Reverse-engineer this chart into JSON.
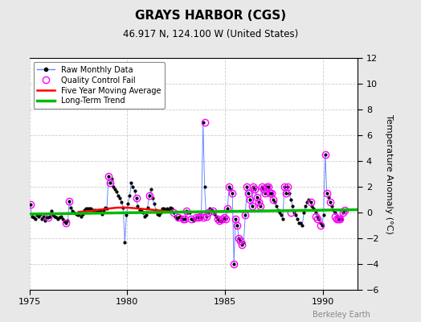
{
  "title": "GRAYS HARBOR (CGS)",
  "subtitle": "46.917 N, 124.100 W (United States)",
  "ylabel": "Temperature Anomaly (°C)",
  "watermark": "Berkeley Earth",
  "xlim": [
    1975,
    1991.8
  ],
  "ylim": [
    -6,
    12
  ],
  "yticks": [
    -6,
    -4,
    -2,
    0,
    2,
    4,
    6,
    8,
    10,
    12
  ],
  "xticks": [
    1975,
    1980,
    1985,
    1990
  ],
  "background_color": "#e8e8e8",
  "plot_bg_color": "#ffffff",
  "raw_x": [
    1975.04,
    1975.13,
    1975.21,
    1975.29,
    1975.38,
    1975.46,
    1975.54,
    1975.63,
    1975.71,
    1975.79,
    1975.88,
    1975.96,
    1976.04,
    1976.13,
    1976.21,
    1976.29,
    1976.38,
    1976.46,
    1976.54,
    1976.63,
    1976.71,
    1976.79,
    1976.88,
    1976.96,
    1977.04,
    1977.13,
    1977.21,
    1977.29,
    1977.38,
    1977.46,
    1977.54,
    1977.63,
    1977.71,
    1977.79,
    1977.88,
    1977.96,
    1978.04,
    1978.13,
    1978.21,
    1978.29,
    1978.38,
    1978.46,
    1978.54,
    1978.63,
    1978.71,
    1978.79,
    1978.88,
    1978.96,
    1979.04,
    1979.13,
    1979.21,
    1979.29,
    1979.38,
    1979.46,
    1979.54,
    1979.63,
    1979.71,
    1979.79,
    1979.88,
    1979.96,
    1980.04,
    1980.13,
    1980.21,
    1980.29,
    1980.38,
    1980.46,
    1980.54,
    1980.63,
    1980.71,
    1980.79,
    1980.88,
    1980.96,
    1981.04,
    1981.13,
    1981.21,
    1981.29,
    1981.38,
    1981.46,
    1981.54,
    1981.63,
    1981.71,
    1981.79,
    1981.88,
    1981.96,
    1982.04,
    1982.13,
    1982.21,
    1982.29,
    1982.38,
    1982.46,
    1982.54,
    1982.63,
    1982.71,
    1982.79,
    1982.88,
    1982.96,
    1983.04,
    1983.13,
    1983.21,
    1983.29,
    1983.38,
    1983.46,
    1983.54,
    1983.63,
    1983.71,
    1983.79,
    1983.88,
    1983.96,
    1984.04,
    1984.13,
    1984.21,
    1984.29,
    1984.38,
    1984.46,
    1984.54,
    1984.63,
    1984.71,
    1984.79,
    1984.88,
    1984.96,
    1985.04,
    1985.13,
    1985.21,
    1985.29,
    1985.38,
    1985.46,
    1985.54,
    1985.63,
    1985.71,
    1985.79,
    1985.88,
    1985.96,
    1986.04,
    1986.13,
    1986.21,
    1986.29,
    1986.38,
    1986.46,
    1986.54,
    1986.63,
    1986.71,
    1986.79,
    1986.88,
    1986.96,
    1987.04,
    1987.13,
    1987.21,
    1987.29,
    1987.38,
    1987.46,
    1987.54,
    1987.63,
    1987.71,
    1987.79,
    1987.88,
    1987.96,
    1988.04,
    1988.13,
    1988.21,
    1988.29,
    1988.38,
    1988.46,
    1988.54,
    1988.63,
    1988.71,
    1988.79,
    1988.88,
    1988.96,
    1989.04,
    1989.13,
    1989.21,
    1989.29,
    1989.38,
    1989.46,
    1989.54,
    1989.63,
    1989.71,
    1989.79,
    1989.88,
    1989.96,
    1990.04,
    1990.13,
    1990.21,
    1990.29,
    1990.38,
    1990.46,
    1990.54,
    1990.63,
    1990.71,
    1990.79,
    1990.88,
    1990.96,
    1991.04,
    1991.13
  ],
  "raw_y": [
    0.6,
    -0.3,
    -0.4,
    -0.5,
    -0.2,
    -0.3,
    -0.1,
    -0.5,
    -0.3,
    -0.6,
    -0.4,
    -0.4,
    -0.3,
    0.1,
    -0.2,
    -0.3,
    -0.4,
    -0.5,
    -0.4,
    -0.3,
    -0.5,
    -0.7,
    -0.8,
    -0.6,
    0.9,
    0.4,
    0.1,
    0.0,
    -0.1,
    -0.2,
    -0.1,
    -0.3,
    -0.1,
    0.2,
    0.3,
    0.3,
    0.3,
    0.3,
    0.2,
    0.2,
    0.2,
    0.1,
    0.2,
    0.1,
    -0.1,
    0.2,
    0.4,
    0.3,
    2.8,
    2.3,
    2.6,
    2.0,
    1.8,
    1.6,
    1.3,
    1.1,
    0.8,
    0.4,
    -2.3,
    -0.2,
    0.7,
    1.3,
    2.3,
    2.0,
    1.7,
    1.1,
    0.5,
    0.2,
    0.1,
    0.0,
    -0.3,
    -0.2,
    0.4,
    1.3,
    1.8,
    1.1,
    0.7,
    0.2,
    -0.1,
    -0.2,
    0.0,
    0.3,
    0.3,
    0.2,
    0.3,
    0.2,
    0.4,
    0.3,
    0.0,
    -0.3,
    -0.5,
    -0.4,
    -0.3,
    -0.5,
    -0.5,
    -0.5,
    0.1,
    0.0,
    0.0,
    -0.5,
    -0.6,
    -0.5,
    -0.4,
    -0.4,
    -0.3,
    -0.4,
    7.0,
    2.0,
    -0.3,
    0.0,
    0.3,
    0.2,
    0.1,
    -0.1,
    -0.3,
    -0.5,
    -0.6,
    -0.7,
    -0.5,
    -0.4,
    -0.5,
    0.3,
    2.0,
    1.8,
    1.5,
    -4.0,
    -0.5,
    -1.0,
    -2.0,
    -2.2,
    -2.5,
    -2.3,
    -0.2,
    2.0,
    1.5,
    1.0,
    0.5,
    2.0,
    1.8,
    1.2,
    0.8,
    0.5,
    2.0,
    1.8,
    1.5,
    2.0,
    2.0,
    1.5,
    1.5,
    1.0,
    0.8,
    0.5,
    0.2,
    0.0,
    -0.2,
    -0.5,
    2.0,
    1.5,
    2.0,
    1.5,
    1.0,
    0.5,
    0.0,
    -0.2,
    -0.5,
    -0.8,
    -0.8,
    -1.0,
    0.0,
    0.5,
    0.8,
    1.0,
    0.8,
    0.5,
    0.3,
    0.0,
    -0.3,
    -0.5,
    -0.8,
    -1.0,
    -0.2,
    4.5,
    1.5,
    1.2,
    0.8,
    0.5,
    0.2,
    0.0,
    -0.3,
    -0.5,
    -0.5,
    -0.5,
    0.0,
    0.2
  ],
  "qc_x": [
    1975.04,
    1975.96,
    1976.88,
    1977.04,
    1979.04,
    1979.13,
    1980.46,
    1981.13,
    1982.38,
    1982.63,
    1982.88,
    1982.96,
    1983.04,
    1983.29,
    1983.54,
    1983.63,
    1983.71,
    1983.88,
    1983.96,
    1984.04,
    1984.13,
    1984.38,
    1984.63,
    1984.71,
    1984.88,
    1984.96,
    1985.04,
    1985.13,
    1985.21,
    1985.38,
    1985.46,
    1985.54,
    1985.63,
    1985.71,
    1985.79,
    1985.88,
    1986.04,
    1986.13,
    1986.21,
    1986.29,
    1986.38,
    1986.46,
    1986.54,
    1986.63,
    1986.71,
    1986.79,
    1986.88,
    1986.96,
    1987.04,
    1987.13,
    1987.21,
    1987.29,
    1987.38,
    1987.46,
    1988.04,
    1988.13,
    1988.21,
    1988.38,
    1989.38,
    1989.63,
    1989.71,
    1989.88,
    1990.13,
    1990.21,
    1990.38,
    1990.63,
    1990.71,
    1990.79,
    1990.88,
    1991.04,
    1991.13
  ],
  "qc_y": [
    0.6,
    -0.4,
    -0.8,
    0.9,
    2.8,
    2.3,
    1.1,
    1.3,
    0.0,
    -0.4,
    -0.5,
    -0.5,
    0.1,
    -0.5,
    -0.4,
    -0.4,
    -0.3,
    -0.4,
    7.0,
    -0.3,
    0.0,
    0.1,
    -0.5,
    -0.6,
    -0.5,
    -0.4,
    -0.5,
    0.3,
    2.0,
    1.5,
    -4.0,
    -0.5,
    -1.0,
    -2.0,
    -2.2,
    -2.5,
    -0.2,
    2.0,
    1.5,
    1.0,
    0.5,
    2.0,
    1.8,
    1.2,
    0.8,
    0.5,
    2.0,
    1.8,
    1.5,
    2.0,
    2.0,
    1.5,
    1.5,
    1.0,
    2.0,
    1.5,
    2.0,
    0.0,
    0.8,
    -0.3,
    -0.5,
    -1.0,
    4.5,
    1.5,
    0.8,
    -0.3,
    -0.5,
    -0.5,
    -0.5,
    0.0,
    0.2
  ],
  "ma_x": [
    1977.5,
    1978.0,
    1978.5,
    1979.0,
    1979.5,
    1980.0,
    1980.5,
    1981.0,
    1981.5,
    1982.0,
    1982.3
  ],
  "ma_y": [
    0.05,
    0.1,
    0.2,
    0.3,
    0.38,
    0.38,
    0.32,
    0.25,
    0.18,
    0.1,
    0.05
  ],
  "trend_x": [
    1975.0,
    1991.8
  ],
  "trend_y": [
    -0.12,
    0.22
  ],
  "raw_line_color": "#6688ff",
  "raw_marker_color": "#000000",
  "qc_color": "#ff00ff",
  "ma_color": "#ff0000",
  "trend_color": "#00bb00",
  "grid_color": "#cccccc",
  "grid_style": "--"
}
